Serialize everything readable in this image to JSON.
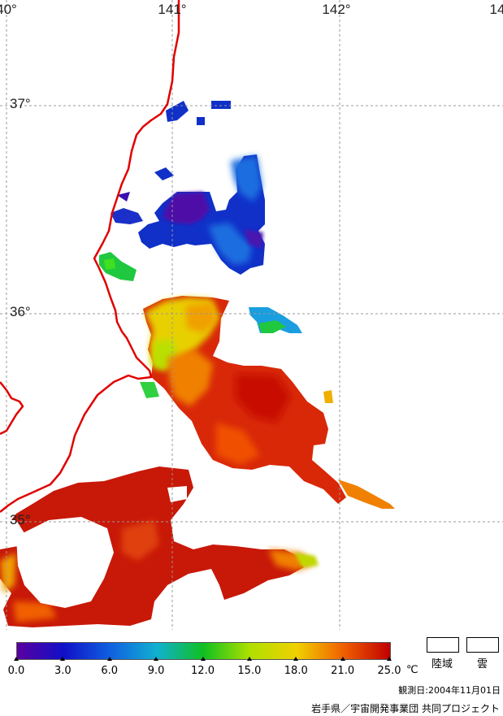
{
  "map": {
    "lon_labels": [
      "40°",
      "141°",
      "142°",
      "14"
    ],
    "lat_labels": [
      "37°",
      "36°",
      "35°"
    ]
  },
  "colorbar": {
    "ticks": [
      "0.0",
      "3.0",
      "6.0",
      "9.0",
      "12.0",
      "15.0",
      "18.0",
      "21.0",
      "25.0"
    ],
    "unit": "℃",
    "colors": [
      "#5a00a0",
      "#1010c8",
      "#1060e0",
      "#10b0d0",
      "#10c020",
      "#b0e000",
      "#f0d000",
      "#f06000",
      "#c00000"
    ]
  },
  "legend": {
    "land_label": "陸域",
    "cloud_label": "雲"
  },
  "footer": {
    "date": "観測日:2004年11月01日",
    "credit": "岩手県／宇宙開発事業団 共同プロジェクト"
  },
  "style": {
    "coast_color": "#e00000",
    "grid_color": "#999999"
  }
}
